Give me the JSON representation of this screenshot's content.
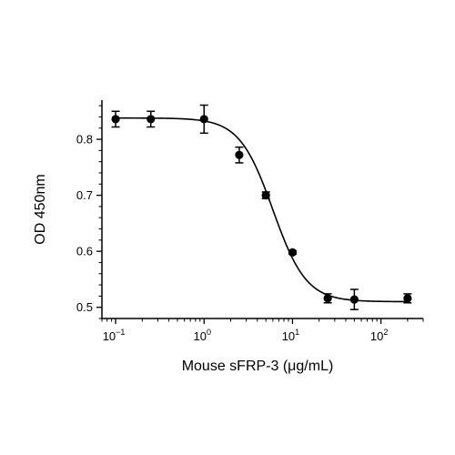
{
  "chart_data": {
    "type": "scatter",
    "xlabel": "Mouse sFRP-3 (μg/mL)",
    "ylabel": "OD 450nm",
    "x_scale": "log",
    "xlim": [
      0.07,
      300
    ],
    "ylim": [
      0.48,
      0.87
    ],
    "x_ticks": [
      {
        "value": 0.1,
        "base": "10",
        "exp": "−1"
      },
      {
        "value": 1,
        "base": "10",
        "exp": "0"
      },
      {
        "value": 10,
        "base": "10",
        "exp": "1"
      },
      {
        "value": 100,
        "base": "10",
        "exp": "2"
      }
    ],
    "y_ticks": [
      {
        "value": 0.5,
        "label": "0.5"
      },
      {
        "value": 0.6,
        "label": "0.6"
      },
      {
        "value": 0.7,
        "label": "0.7"
      },
      {
        "value": 0.8,
        "label": "0.8"
      }
    ],
    "points": [
      {
        "x": 0.1,
        "y": 0.836,
        "err": 0.014
      },
      {
        "x": 0.25,
        "y": 0.836,
        "err": 0.014
      },
      {
        "x": 1,
        "y": 0.836,
        "err": 0.025
      },
      {
        "x": 2.5,
        "y": 0.772,
        "err": 0.014
      },
      {
        "x": 5,
        "y": 0.7,
        "err": 0.006
      },
      {
        "x": 10,
        "y": 0.598,
        "err": 0.003
      },
      {
        "x": 25,
        "y": 0.516,
        "err": 0.008
      },
      {
        "x": 50,
        "y": 0.514,
        "err": 0.018
      },
      {
        "x": 200,
        "y": 0.516,
        "err": 0.008
      }
    ],
    "fit": {
      "model": "4PL",
      "top": 0.838,
      "bottom": 0.51,
      "ec50": 6.0,
      "hill": 2.3
    },
    "grid": false,
    "legend": "none"
  }
}
